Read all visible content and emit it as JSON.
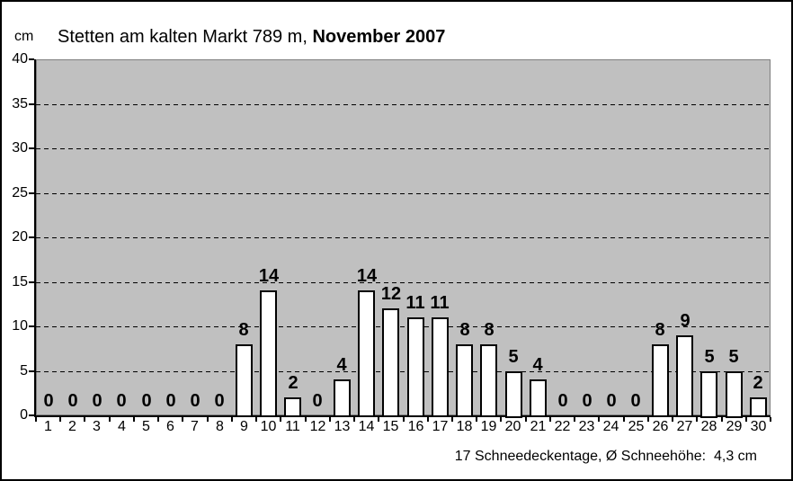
{
  "header": {
    "unit_label": "cm",
    "title_regular": "Stetten am kalten Markt 789 m, ",
    "title_bold": "November 2007"
  },
  "footer": {
    "summary": "17 Schneedeckentage, Ø Schneehöhe:  4,3 cm"
  },
  "chart_data": {
    "type": "bar",
    "title": "Stetten am kalten Markt 789 m, November 2007",
    "categories": [
      1,
      2,
      3,
      4,
      5,
      6,
      7,
      8,
      9,
      10,
      11,
      12,
      13,
      14,
      15,
      16,
      17,
      18,
      19,
      20,
      21,
      22,
      23,
      24,
      25,
      26,
      27,
      28,
      29,
      30
    ],
    "values": [
      0,
      0,
      0,
      0,
      0,
      0,
      0,
      0,
      8,
      14,
      2,
      0,
      4,
      14,
      12,
      11,
      11,
      8,
      8,
      5,
      4,
      0,
      0,
      0,
      0,
      8,
      9,
      5,
      5,
      2
    ],
    "xlabel": "",
    "ylabel": "cm",
    "ylim": [
      0,
      40
    ],
    "ytick_step": 5,
    "ytick_labels": [
      "0",
      "5",
      "10",
      "15",
      "20",
      "25",
      "30",
      "35",
      "40"
    ],
    "grid": "horizontal-dashed",
    "data_labels": true,
    "legend": "none",
    "annotation": "17 Schneedeckentage, Ø Schneehöhe:  4,3 cm",
    "colors": {
      "plot_background": "#c0c0c0",
      "bar_fill": "#ffffff",
      "bar_border": "#000000",
      "gridline": "#000000",
      "axis": "#000000",
      "text": "#000000"
    }
  }
}
